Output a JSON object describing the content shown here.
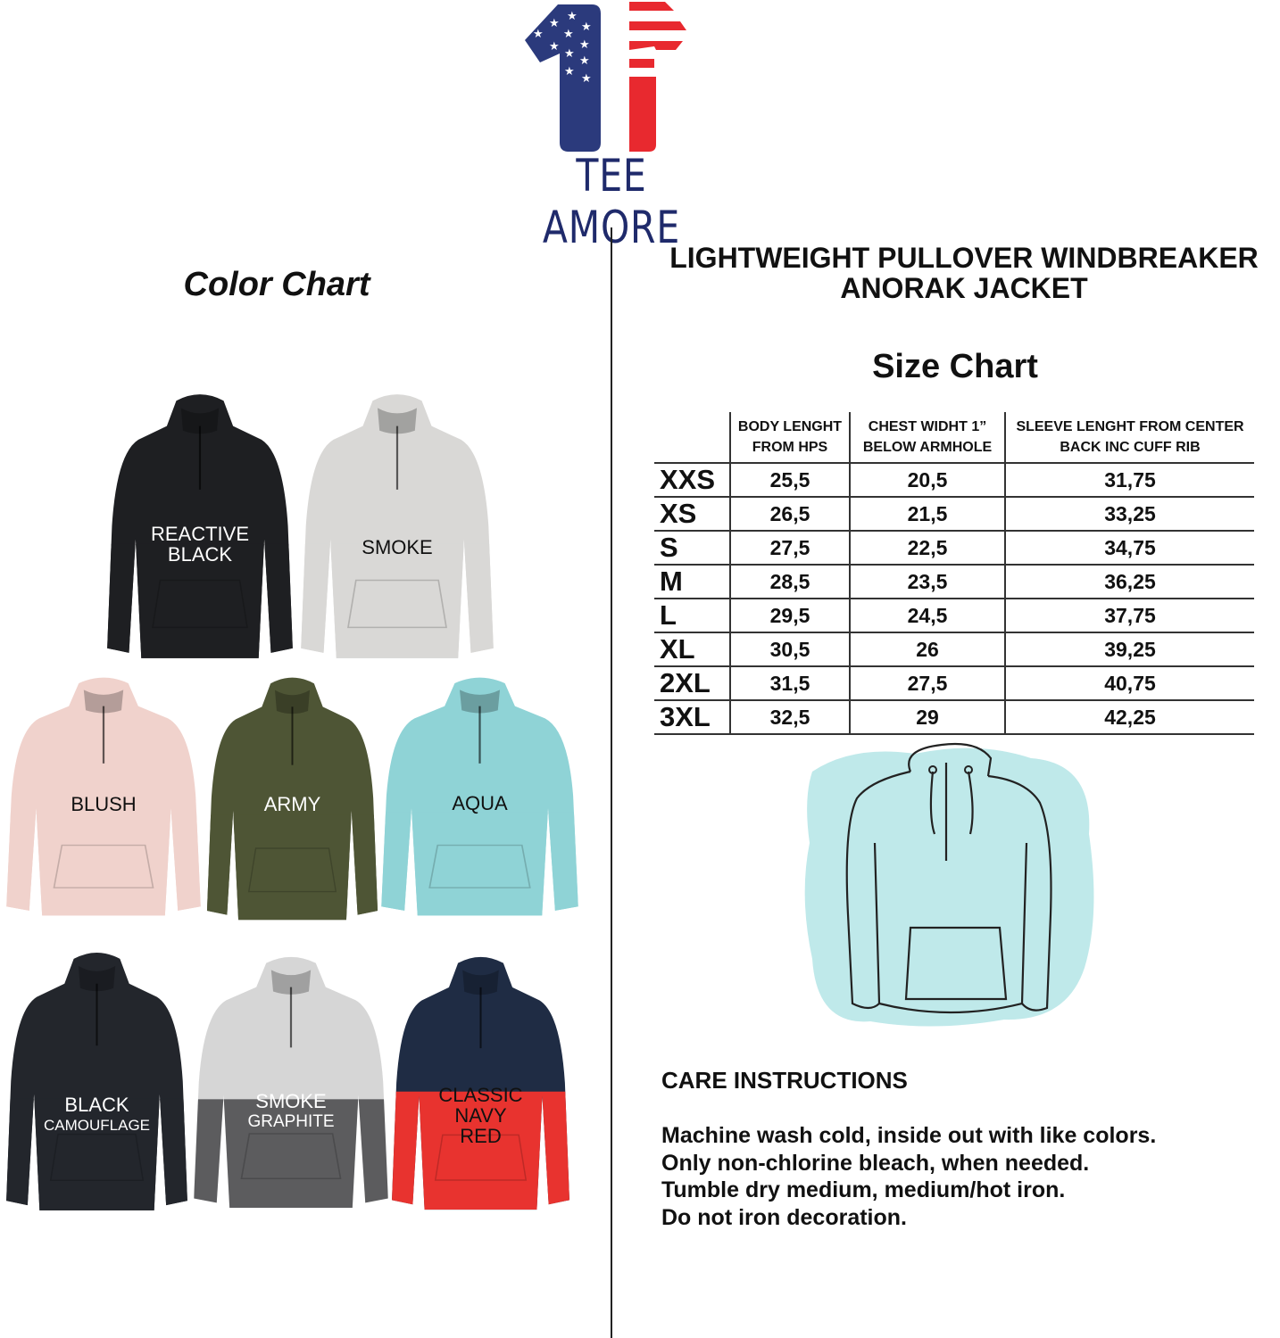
{
  "brand": {
    "name": "TEE AMORE",
    "colors": {
      "navy": "#2b3a7c",
      "red": "#e8292f",
      "text": "#1f2a6b"
    }
  },
  "color_chart": {
    "title": "Color Chart",
    "jackets": [
      {
        "line1": "REACTIVE",
        "line2": "BLACK",
        "color": "#1e1f22",
        "color2": "#1e1f22",
        "label_color": "#ffffff"
      },
      {
        "line1": "SMOKE",
        "line2": "",
        "color": "#d9d8d6",
        "color2": "#d9d8d6",
        "label_color": "#111111"
      },
      {
        "line1": "BLUSH",
        "line2": "",
        "color": "#f0d2cc",
        "color2": "#f0d2cc",
        "label_color": "#111111"
      },
      {
        "line1": "ARMY",
        "line2": "",
        "color": "#4e5535",
        "color2": "#4e5535",
        "label_color": "#ffffff"
      },
      {
        "line1": "AQUA",
        "line2": "",
        "color": "#8fd3d6",
        "color2": "#8fd3d6",
        "label_color": "#111111"
      },
      {
        "line1": "BLACK",
        "line2": "CAMOUFLAGE",
        "color": "#23262c",
        "color2": "#23262c",
        "label_color": "#ffffff"
      },
      {
        "line1": "SMOKE",
        "line2": "GRAPHITE",
        "color": "#d6d6d6",
        "color2": "#5c5c5e",
        "label_color": "#ffffff"
      },
      {
        "line1": "CLASSIC",
        "line2": "NAVY",
        "line3": "RED",
        "color": "#1f2c44",
        "color2": "#e8332f",
        "label_color": "#111111"
      }
    ]
  },
  "product": {
    "title_line1": "LIGHTWEIGHT PULLOVER WINDBREAKER",
    "title_line2": "ANORAK JACKET"
  },
  "size_chart": {
    "title": "Size Chart",
    "headers": [
      {
        "line1": "BODY LENGHT",
        "line2": "FROM HPS"
      },
      {
        "line1": "CHEST WIDHT 1”",
        "line2": "BELOW ARMHOLE"
      },
      {
        "line1": "SLEEVE LENGHT FROM CENTER",
        "line2": "BACK INC CUFF RIB"
      }
    ],
    "rows": [
      {
        "size": "XXS",
        "body": "25,5",
        "chest": "20,5",
        "sleeve": "31,75"
      },
      {
        "size": "XS",
        "body": "26,5",
        "chest": "21,5",
        "sleeve": "33,25"
      },
      {
        "size": "S",
        "body": "27,5",
        "chest": "22,5",
        "sleeve": "34,75"
      },
      {
        "size": "M",
        "body": "28,5",
        "chest": "23,5",
        "sleeve": "36,25"
      },
      {
        "size": "L",
        "body": "29,5",
        "chest": "24,5",
        "sleeve": "37,75"
      },
      {
        "size": "XL",
        "body": "30,5",
        "chest": "26",
        "sleeve": "39,25"
      },
      {
        "size": "2XL",
        "body": "31,5",
        "chest": "27,5",
        "sleeve": "40,75"
      },
      {
        "size": "3XL",
        "body": "32,5",
        "chest": "29",
        "sleeve": "42,25"
      }
    ]
  },
  "care": {
    "title": "CARE INSTRUCTIONS",
    "lines": [
      "Machine wash cold, inside out with like colors.",
      "Only non-chlorine bleach, when needed.",
      "Tumble dry medium, medium/hot iron.",
      "Do not iron decoration."
    ]
  }
}
